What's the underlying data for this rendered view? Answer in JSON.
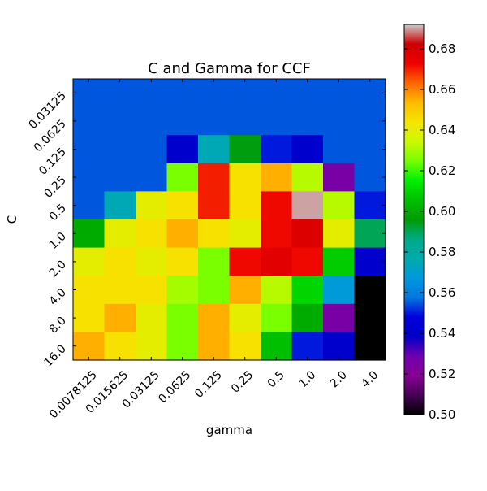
{
  "chart_data": {
    "type": "heatmap",
    "title": "C and Gamma for CCF",
    "xlabel": "gamma",
    "ylabel": "C",
    "x_categories": [
      "0.0078125",
      "0.015625",
      "0.03125",
      "0.0625",
      "0.125",
      "0.25",
      "0.5",
      "1.0",
      "2.0",
      "4.0"
    ],
    "y_categories": [
      "0.03125",
      "0.0625",
      "0.125",
      "0.25",
      "0.5",
      "1.0",
      "2.0",
      "4.0",
      "8.0",
      "16.0"
    ],
    "values": [
      [
        0.555,
        0.555,
        0.555,
        0.555,
        0.555,
        0.555,
        0.555,
        0.555,
        0.555,
        0.555
      ],
      [
        0.555,
        0.555,
        0.555,
        0.555,
        0.555,
        0.555,
        0.555,
        0.555,
        0.555,
        0.555
      ],
      [
        0.555,
        0.555,
        0.555,
        0.54,
        0.575,
        0.595,
        0.55,
        0.54,
        0.555,
        0.555
      ],
      [
        0.555,
        0.555,
        0.555,
        0.625,
        0.67,
        0.645,
        0.655,
        0.632,
        0.525,
        0.555
      ],
      [
        0.555,
        0.575,
        0.64,
        0.645,
        0.67,
        0.645,
        0.672,
        0.69,
        0.632,
        0.55
      ],
      [
        0.6,
        0.64,
        0.645,
        0.655,
        0.645,
        0.64,
        0.672,
        0.678,
        0.64,
        0.59
      ],
      [
        0.64,
        0.645,
        0.64,
        0.645,
        0.625,
        0.672,
        0.676,
        0.672,
        0.608,
        0.54
      ],
      [
        0.645,
        0.645,
        0.645,
        0.63,
        0.625,
        0.655,
        0.632,
        0.61,
        0.568,
        0.5
      ],
      [
        0.645,
        0.655,
        0.64,
        0.625,
        0.655,
        0.64,
        0.625,
        0.6,
        0.525,
        0.5
      ],
      [
        0.655,
        0.645,
        0.64,
        0.625,
        0.655,
        0.645,
        0.605,
        0.55,
        0.54,
        0.5
      ]
    ],
    "colorbar": {
      "min": 0.5,
      "max": 0.692,
      "ticks": [
        "0.50",
        "0.52",
        "0.54",
        "0.56",
        "0.58",
        "0.60",
        "0.62",
        "0.64",
        "0.66",
        "0.68"
      ]
    },
    "colormap": [
      [
        0.0,
        "#000000"
      ],
      [
        0.05,
        "#470055"
      ],
      [
        0.1,
        "#870095"
      ],
      [
        0.15,
        "#6f00af"
      ],
      [
        0.2,
        "#0000c8"
      ],
      [
        0.25,
        "#0000dd"
      ],
      [
        0.3,
        "#0077dd"
      ],
      [
        0.35,
        "#0099dd"
      ],
      [
        0.4,
        "#00aaaa"
      ],
      [
        0.45,
        "#00aa88"
      ],
      [
        0.5,
        "#009c00"
      ],
      [
        0.55,
        "#00c000"
      ],
      [
        0.6,
        "#00ee00"
      ],
      [
        0.65,
        "#77ff00"
      ],
      [
        0.7,
        "#ccf800"
      ],
      [
        0.75,
        "#f5e500"
      ],
      [
        0.8,
        "#ffbb00"
      ],
      [
        0.85,
        "#ff6600"
      ],
      [
        0.9,
        "#ee0000"
      ],
      [
        0.95,
        "#cc0000"
      ],
      [
        1.0,
        "#cccccc"
      ]
    ],
    "grid": false
  }
}
